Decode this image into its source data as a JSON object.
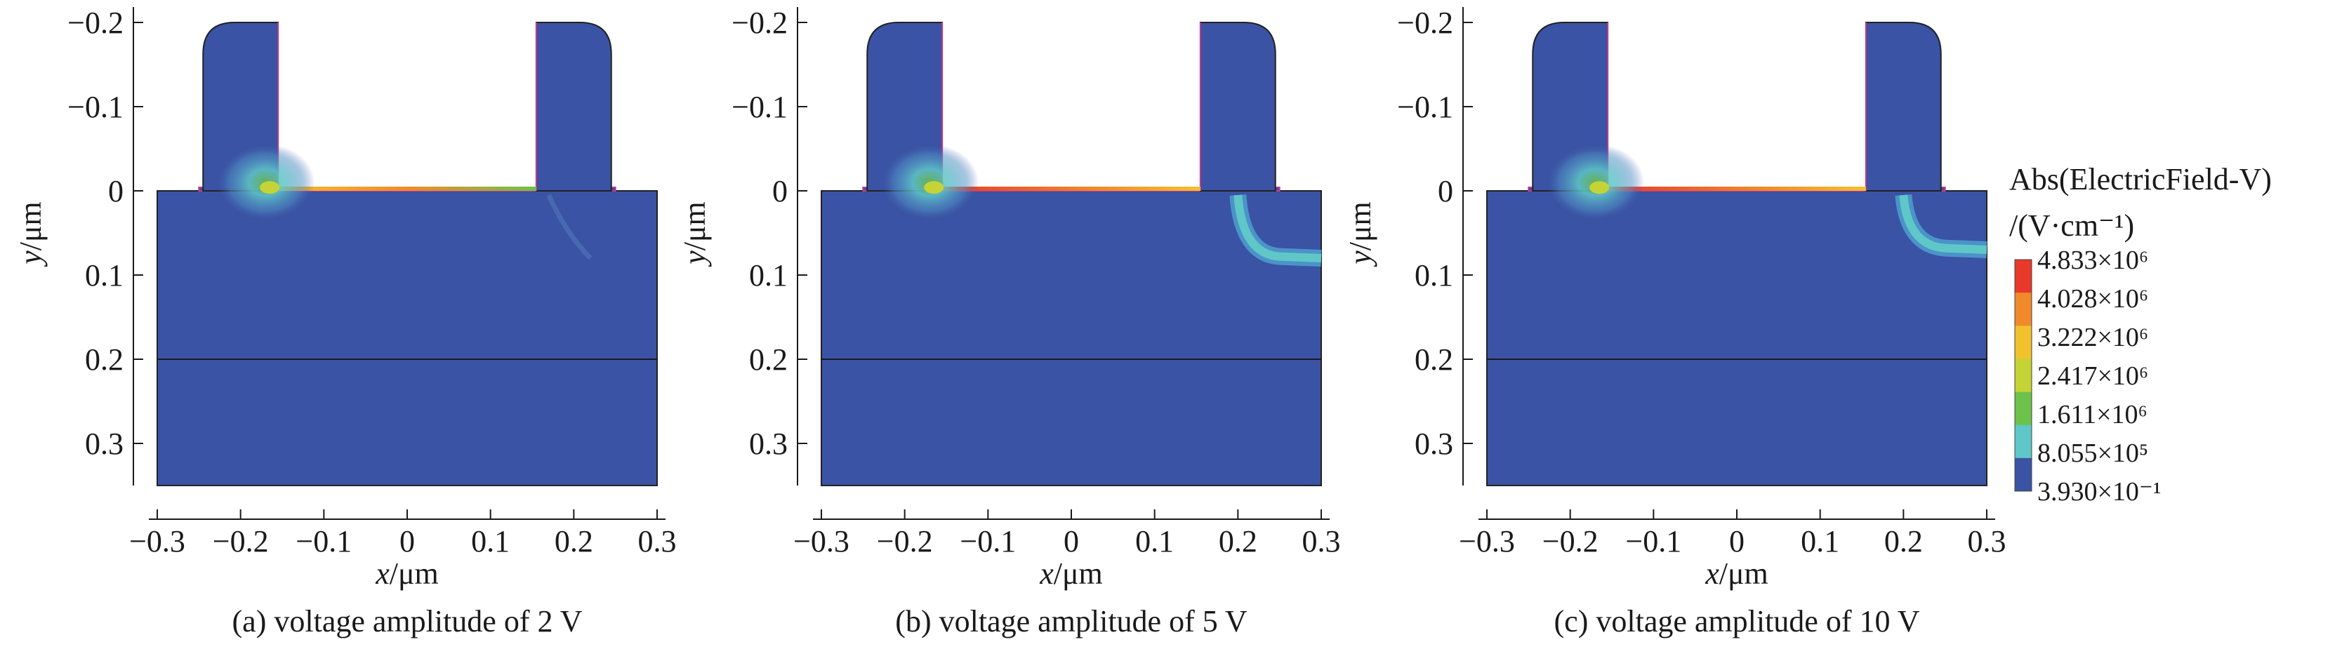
{
  "chart_data": [
    {
      "type": "heatmap",
      "caption": "(a) voltage amplitude of 2 V",
      "xlabel": "x/μm",
      "ylabel": "y/μm",
      "xlim": [
        -0.3,
        0.3
      ],
      "ylim": [
        -0.2,
        0.35
      ],
      "y_inverted": true,
      "xticks": [
        "−0.3",
        "−0.2",
        "−0.1",
        "0",
        "0.1",
        "0.2",
        "0.3"
      ],
      "yticks": [
        "−0.2",
        "−0.1",
        "0",
        "0.1",
        "0.2",
        "0.3"
      ],
      "hotspots": [
        {
          "x": -0.16,
          "y": 0.0,
          "level": "high-interface"
        },
        {
          "x": 0.0,
          "y": 0.0,
          "level": "channel-surface"
        }
      ]
    },
    {
      "type": "heatmap",
      "caption": "(b) voltage amplitude of 5 V",
      "xlabel": "x/μm",
      "ylabel": "y/μm",
      "xlim": [
        -0.3,
        0.3
      ],
      "ylim": [
        -0.2,
        0.35
      ],
      "y_inverted": true,
      "xticks": [
        "−0.3",
        "−0.2",
        "−0.1",
        "0",
        "0.1",
        "0.2",
        "0.3"
      ],
      "yticks": [
        "−0.2",
        "−0.1",
        "0",
        "0.1",
        "0.2",
        "0.3"
      ],
      "hotspots": [
        {
          "x": -0.16,
          "y": 0.0,
          "level": "high-interface"
        },
        {
          "x": 0.22,
          "y": 0.07,
          "level": "depletion-arc"
        }
      ]
    },
    {
      "type": "heatmap",
      "caption": "(c) voltage amplitude of 10 V",
      "xlabel": "x/μm",
      "ylabel": "y/μm",
      "xlim": [
        -0.3,
        0.3
      ],
      "ylim": [
        -0.2,
        0.35
      ],
      "y_inverted": true,
      "xticks": [
        "−0.3",
        "−0.2",
        "−0.1",
        "0",
        "0.1",
        "0.2",
        "0.3"
      ],
      "yticks": [
        "−0.2",
        "−0.1",
        "0",
        "0.1",
        "0.2",
        "0.3"
      ],
      "hotspots": [
        {
          "x": -0.16,
          "y": 0.0,
          "level": "high-interface"
        },
        {
          "x": 0.22,
          "y": 0.06,
          "level": "depletion-arc"
        }
      ]
    }
  ],
  "colorbar": {
    "title_line1": "Abs(ElectricField-V)",
    "title_line2": "/(V·cm⁻¹)",
    "ticks": [
      "4.833×10⁶",
      "4.028×10⁶",
      "3.222×10⁶",
      "2.417×10⁶",
      "1.611×10⁶",
      "8.055×10⁵",
      "3.930×10⁻¹"
    ],
    "colors": [
      "#e8392a",
      "#f08a2a",
      "#f2c12e",
      "#c6d336",
      "#6cc24a",
      "#5fc7c8",
      "#3a53a4"
    ]
  }
}
